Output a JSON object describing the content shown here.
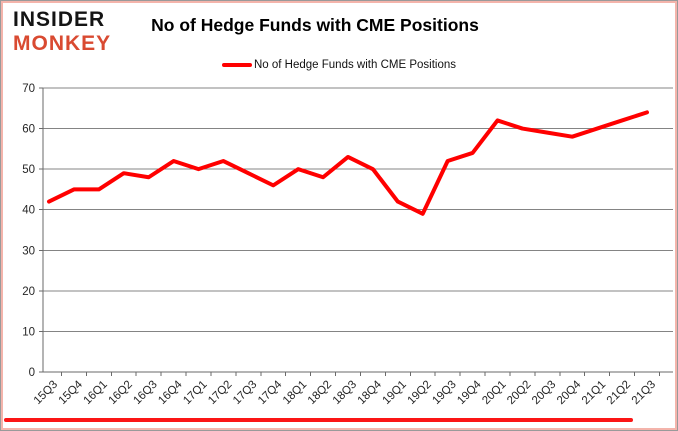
{
  "logo": {
    "line1": "INSIDER",
    "line2": "MONKEY"
  },
  "header": {
    "title": "No of Hedge Funds with CME Positions"
  },
  "legend": {
    "label": "No of Hedge Funds with CME Positions"
  },
  "colors": {
    "series": "#ff0000",
    "logo_accent": "#d94a31",
    "gridline": "#848484",
    "axis": "#6a6a6a",
    "tick_text": "#262626",
    "border_inner": "#f4b4ab",
    "footer_rule": "#fb1515"
  },
  "chart_data": {
    "type": "line",
    "title": "No of Hedge Funds with CME Positions",
    "categories": [
      "15Q3",
      "15Q4",
      "16Q1",
      "16Q2",
      "16Q3",
      "16Q4",
      "17Q1",
      "17Q2",
      "17Q3",
      "17Q4",
      "18Q1",
      "18Q2",
      "18Q3",
      "18Q4",
      "19Q1",
      "19Q2",
      "19Q3",
      "19Q4",
      "20Q1",
      "20Q2",
      "20Q3",
      "20Q4",
      "21Q1",
      "21Q2",
      "21Q3"
    ],
    "series": [
      {
        "name": "No of Hedge Funds with CME Positions",
        "color": "#ff0000",
        "values": [
          42,
          45,
          45,
          49,
          48,
          52,
          50,
          52,
          49,
          46,
          50,
          48,
          53,
          50,
          42,
          39,
          52,
          54,
          62,
          60,
          59,
          58,
          60,
          62,
          64
        ]
      }
    ],
    "xlabel": "",
    "ylabel": "",
    "ylim": [
      0,
      70
    ],
    "yticks": [
      0,
      10,
      20,
      30,
      40,
      50,
      60,
      70
    ],
    "grid": true,
    "legend_position": "top"
  }
}
